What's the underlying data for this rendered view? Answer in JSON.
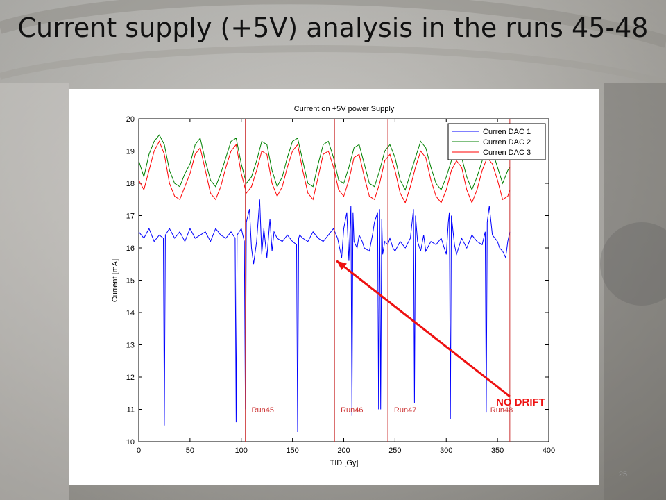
{
  "slide": {
    "title": "Current supply (+5V) analysis in the runs 45-48",
    "slide_number": "25"
  },
  "colors": {
    "dac1": "#0000ff",
    "dac2": "#008000",
    "dac3": "#ff0000",
    "run_lines": "#cc3333",
    "annotation": "#ee1111"
  },
  "annotation": {
    "text": "NO DRIFT",
    "arrow_from": {
      "x": 362,
      "y": 11.4
    },
    "arrow_to": {
      "x": 193,
      "y": 15.6
    }
  },
  "chart_data": {
    "type": "line",
    "title": "Current on +5V power Supply",
    "xlabel": "TID [Gy]",
    "ylabel": "Current [mA]",
    "xlim": [
      0,
      400
    ],
    "ylim": [
      10,
      20
    ],
    "xticks": [
      0,
      50,
      100,
      150,
      200,
      250,
      300,
      350,
      400
    ],
    "yticks": [
      10,
      11,
      12,
      13,
      14,
      15,
      16,
      17,
      18,
      19,
      20
    ],
    "legend_position": "top-right",
    "legend": [
      "Curren DAC 1",
      "Curren DAC 2",
      "Curren DAC 3"
    ],
    "run_boundaries": [
      104,
      191,
      243,
      362
    ],
    "run_labels": [
      {
        "text": "Run45",
        "x": 110
      },
      {
        "text": "Run46",
        "x": 197
      },
      {
        "text": "Run47",
        "x": 249
      },
      {
        "text": "Run48",
        "x": 343
      }
    ],
    "series": [
      {
        "name": "Curren DAC 1",
        "x": [
          0,
          5,
          10,
          15,
          20,
          24,
          25,
          26,
          30,
          35,
          40,
          45,
          50,
          55,
          60,
          65,
          70,
          75,
          80,
          85,
          90,
          94,
          95,
          96,
          100,
          103,
          104,
          105,
          108,
          110,
          112,
          115,
          118,
          120,
          122,
          125,
          128,
          130,
          132,
          135,
          140,
          145,
          150,
          154,
          155,
          156,
          157,
          160,
          165,
          170,
          175,
          180,
          185,
          190,
          194,
          198,
          200,
          203,
          205,
          207,
          208,
          209,
          210,
          213,
          215,
          218,
          220,
          225,
          228,
          230,
          233,
          234,
          235,
          236,
          237,
          238,
          240,
          243,
          245,
          248,
          250,
          255,
          260,
          265,
          267,
          268,
          269,
          270,
          272,
          275,
          278,
          280,
          285,
          290,
          295,
          300,
          302,
          303,
          304,
          305,
          308,
          310,
          315,
          320,
          325,
          330,
          335,
          338,
          339,
          340,
          342,
          345,
          350,
          352,
          355,
          358,
          360,
          362
        ],
        "values": [
          16.5,
          16.3,
          16.6,
          16.2,
          16.4,
          16.3,
          10.5,
          16.4,
          16.6,
          16.3,
          16.5,
          16.2,
          16.6,
          16.3,
          16.4,
          16.5,
          16.2,
          16.6,
          16.4,
          16.3,
          16.5,
          16.3,
          10.6,
          16.4,
          16.6,
          16.2,
          11.0,
          16.8,
          17.2,
          16.0,
          15.5,
          16.2,
          17.5,
          15.8,
          16.6,
          15.7,
          16.9,
          15.9,
          16.5,
          16.3,
          16.2,
          16.4,
          16.2,
          16.1,
          10.3,
          16.3,
          16.4,
          16.3,
          16.2,
          16.5,
          16.3,
          16.2,
          16.4,
          16.6,
          16.3,
          15.7,
          16.6,
          17.1,
          15.6,
          17.3,
          10.8,
          17.1,
          16.2,
          16.0,
          16.4,
          16.2,
          16.0,
          15.9,
          16.4,
          16.8,
          17.1,
          11.0,
          17.2,
          11.0,
          16.9,
          15.8,
          16.2,
          16.1,
          16.3,
          16.0,
          15.9,
          16.2,
          16.0,
          16.3,
          16.9,
          17.2,
          11.2,
          17.0,
          16.2,
          15.9,
          16.4,
          15.9,
          16.2,
          16.1,
          16.3,
          15.8,
          16.8,
          17.1,
          10.7,
          17.0,
          16.1,
          15.8,
          16.3,
          16.0,
          16.4,
          16.2,
          16.1,
          16.5,
          10.9,
          16.8,
          17.3,
          16.4,
          16.2,
          16.0,
          15.9,
          15.7,
          16.2,
          16.5
        ]
      },
      {
        "name": "Curren DAC 2",
        "x": [
          0,
          5,
          10,
          15,
          20,
          25,
          30,
          35,
          40,
          45,
          50,
          55,
          60,
          65,
          70,
          75,
          80,
          85,
          90,
          95,
          100,
          105,
          110,
          115,
          120,
          125,
          130,
          135,
          140,
          145,
          150,
          155,
          160,
          165,
          170,
          175,
          180,
          185,
          190,
          195,
          200,
          205,
          210,
          215,
          220,
          225,
          230,
          235,
          240,
          245,
          250,
          255,
          260,
          265,
          270,
          275,
          280,
          285,
          290,
          295,
          300,
          305,
          310,
          315,
          320,
          325,
          330,
          335,
          340,
          345,
          350,
          355,
          360,
          362
        ],
        "values": [
          18.7,
          18.2,
          18.9,
          19.3,
          19.5,
          19.2,
          18.4,
          18.0,
          17.9,
          18.3,
          18.6,
          19.2,
          19.4,
          18.7,
          18.1,
          17.9,
          18.3,
          18.8,
          19.3,
          19.4,
          18.6,
          18.0,
          18.2,
          18.7,
          19.3,
          19.2,
          18.4,
          17.9,
          18.2,
          18.8,
          19.3,
          19.4,
          18.7,
          18.0,
          17.9,
          18.6,
          19.2,
          19.3,
          18.8,
          18.1,
          18.0,
          18.5,
          19.1,
          19.2,
          18.6,
          18.0,
          17.9,
          18.4,
          19.0,
          19.2,
          18.8,
          18.1,
          17.8,
          18.3,
          18.8,
          19.3,
          19.1,
          18.5,
          18.0,
          17.8,
          18.2,
          18.7,
          19.0,
          18.8,
          18.2,
          17.8,
          18.2,
          18.7,
          19.1,
          19.0,
          18.5,
          18.0,
          18.4,
          18.5
        ]
      },
      {
        "name": "Curren DAC 3",
        "x": [
          0,
          5,
          10,
          15,
          20,
          25,
          30,
          35,
          40,
          45,
          50,
          55,
          60,
          65,
          70,
          75,
          80,
          85,
          90,
          95,
          100,
          105,
          110,
          115,
          120,
          125,
          130,
          135,
          140,
          145,
          150,
          155,
          160,
          165,
          170,
          175,
          180,
          185,
          190,
          195,
          200,
          205,
          210,
          215,
          220,
          225,
          230,
          235,
          240,
          245,
          250,
          255,
          260,
          265,
          270,
          275,
          280,
          285,
          290,
          295,
          300,
          305,
          310,
          315,
          320,
          325,
          330,
          335,
          340,
          345,
          350,
          355,
          360,
          362
        ],
        "values": [
          18.1,
          17.8,
          18.4,
          19.0,
          19.3,
          18.9,
          18.0,
          17.6,
          17.5,
          17.9,
          18.3,
          18.9,
          19.1,
          18.4,
          17.7,
          17.5,
          17.9,
          18.5,
          19.0,
          19.2,
          18.3,
          17.7,
          17.9,
          18.4,
          19.0,
          18.9,
          18.0,
          17.6,
          17.9,
          18.5,
          19.0,
          19.2,
          18.4,
          17.7,
          17.5,
          18.2,
          18.9,
          19.0,
          18.5,
          17.8,
          17.6,
          18.1,
          18.8,
          18.9,
          18.2,
          17.6,
          17.5,
          18.0,
          18.7,
          18.9,
          18.4,
          17.7,
          17.4,
          17.9,
          18.5,
          19.0,
          18.8,
          18.1,
          17.6,
          17.4,
          17.8,
          18.4,
          18.7,
          18.5,
          17.8,
          17.4,
          17.8,
          18.4,
          18.8,
          18.6,
          18.1,
          17.5,
          17.6,
          17.8
        ]
      }
    ]
  }
}
